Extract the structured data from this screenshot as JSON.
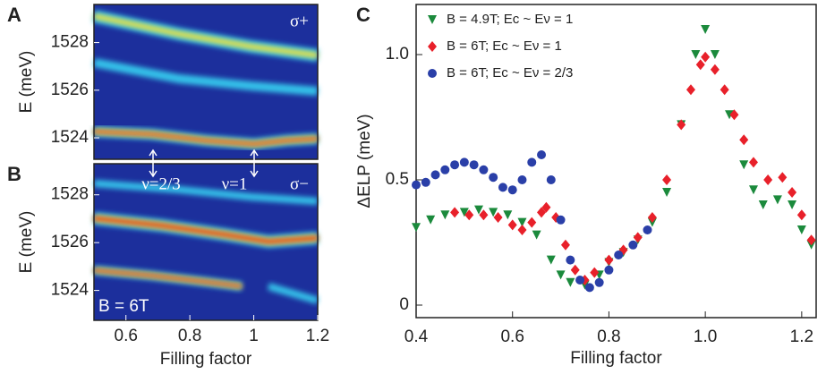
{
  "chart_data": [
    {
      "type": "heatmap",
      "panel": "A",
      "ylabel": "E (meV)",
      "xlim": [
        0.5,
        1.2
      ],
      "ylim": [
        1523.1,
        1529.6
      ],
      "yticks": [
        1524,
        1526,
        1528
      ],
      "annotations": [
        "σ+"
      ]
    },
    {
      "type": "heatmap",
      "panel": "B",
      "ylabel": "E (meV)",
      "xlabel": "Filling factor",
      "xlim": [
        0.5,
        1.2
      ],
      "ylim": [
        1522.75,
        1529.3
      ],
      "xticks": [
        0.6,
        0.8,
        1,
        1.2
      ],
      "yticks": [
        1524,
        1526,
        1528
      ],
      "annotations": [
        "ν=2/3",
        "ν=1",
        "σ−",
        "B = 6T"
      ]
    },
    {
      "type": "scatter",
      "panel": "C",
      "xlabel": "Filling factor",
      "ylabel": "ΔELP (meV)",
      "xlim": [
        0.4,
        1.23
      ],
      "ylim": [
        -0.05,
        1.2
      ],
      "xticks": [
        0.4,
        0.6,
        0.8,
        {
          "value": 1,
          "label": "1.0"
        },
        1.2
      ],
      "yticks": [
        0,
        0.5,
        {
          "value": 1,
          "label": "1.0"
        }
      ],
      "series": [
        {
          "name": "B = 4.9T; Ec ~ Eν = 1",
          "color": "#1b8a3c",
          "marker": "triangle",
          "x": [
            0.4,
            0.43,
            0.46,
            0.5,
            0.53,
            0.56,
            0.59,
            0.62,
            0.65,
            0.68,
            0.7,
            0.72,
            0.75,
            0.78,
            0.8,
            0.83,
            0.86,
            0.89,
            0.92,
            0.95,
            0.98,
            1.0,
            1.02,
            1.05,
            1.08,
            1.1,
            1.12,
            1.15,
            1.18,
            1.2,
            1.22
          ],
          "values": [
            0.31,
            0.34,
            0.36,
            0.37,
            0.38,
            0.37,
            0.36,
            0.33,
            0.28,
            0.18,
            0.12,
            0.09,
            0.08,
            0.12,
            0.17,
            0.21,
            0.26,
            0.33,
            0.45,
            0.72,
            1.0,
            1.1,
            1.0,
            0.76,
            0.56,
            0.46,
            0.4,
            0.42,
            0.4,
            0.3,
            0.24
          ]
        },
        {
          "name": "B = 6T; Ec ~ Eν = 1",
          "color": "#e8202a",
          "marker": "diamond",
          "x": [
            0.48,
            0.51,
            0.54,
            0.57,
            0.6,
            0.62,
            0.64,
            0.66,
            0.67,
            0.69,
            0.71,
            0.73,
            0.75,
            0.77,
            0.8,
            0.83,
            0.86,
            0.89,
            0.92,
            0.95,
            0.97,
            0.99,
            1.0,
            1.02,
            1.04,
            1.06,
            1.08,
            1.1,
            1.13,
            1.16,
            1.18,
            1.2,
            1.22
          ],
          "values": [
            0.37,
            0.36,
            0.36,
            0.35,
            0.32,
            0.3,
            0.33,
            0.37,
            0.39,
            0.35,
            0.24,
            0.14,
            0.1,
            0.13,
            0.18,
            0.22,
            0.27,
            0.35,
            0.5,
            0.72,
            0.86,
            0.96,
            0.99,
            0.94,
            0.86,
            0.76,
            0.66,
            0.57,
            0.5,
            0.51,
            0.45,
            0.36,
            0.26
          ]
        },
        {
          "name": "B = 6T; Ec ~ Eν = 2/3",
          "color": "#2a3fa8",
          "marker": "circle",
          "x": [
            0.4,
            0.42,
            0.44,
            0.46,
            0.48,
            0.5,
            0.52,
            0.54,
            0.56,
            0.58,
            0.6,
            0.62,
            0.64,
            0.66,
            0.68,
            0.7,
            0.72,
            0.74,
            0.76,
            0.78,
            0.8,
            0.82,
            0.85,
            0.88
          ],
          "values": [
            0.48,
            0.49,
            0.52,
            0.54,
            0.56,
            0.57,
            0.56,
            0.54,
            0.51,
            0.47,
            0.46,
            0.5,
            0.57,
            0.6,
            0.5,
            0.34,
            0.18,
            0.1,
            0.07,
            0.09,
            0.14,
            0.2,
            0.24,
            0.3
          ]
        }
      ]
    }
  ]
}
